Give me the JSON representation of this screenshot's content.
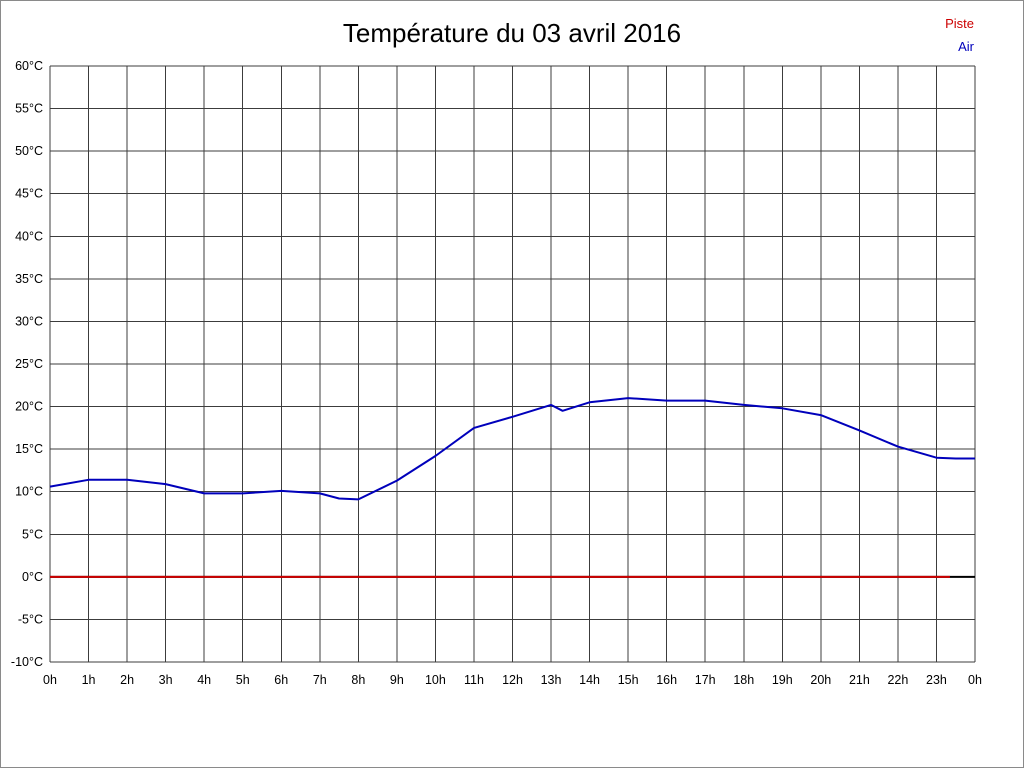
{
  "title": "Température du 03 avril 2016",
  "legend": {
    "piste": "Piste",
    "air": "Air"
  },
  "colors": {
    "piste": "#cc0000",
    "air": "#0000bb",
    "grid": "#3c3c3c",
    "zero_line": "#000000"
  },
  "chart_data": {
    "type": "line",
    "title": "Température du 03 avril 2016",
    "xlabel": "",
    "ylabel": "",
    "xlim": [
      0,
      24
    ],
    "ylim": [
      -10,
      60
    ],
    "y_step": 5,
    "x_step": 1,
    "grid": true,
    "legend_position": "top-right",
    "x_tick_labels": [
      "0h",
      "1h",
      "2h",
      "3h",
      "4h",
      "5h",
      "6h",
      "7h",
      "8h",
      "9h",
      "10h",
      "11h",
      "12h",
      "13h",
      "14h",
      "15h",
      "16h",
      "17h",
      "18h",
      "19h",
      "20h",
      "21h",
      "22h",
      "23h",
      "0h"
    ],
    "y_tick_labels": [
      "60°C",
      "55°C",
      "50°C",
      "45°C",
      "40°C",
      "35°C",
      "30°C",
      "25°C",
      "20°C",
      "15°C",
      "10°C",
      "5°C",
      "0°C",
      "-5°C",
      "-10°C"
    ],
    "series": [
      {
        "name": "Piste",
        "color": "#cc0000",
        "x": [
          0,
          23.35
        ],
        "values": [
          0,
          0
        ]
      },
      {
        "name": "Air",
        "color": "#0000bb",
        "x": [
          0,
          1,
          2,
          3,
          4,
          5,
          6,
          7,
          7.5,
          8,
          9,
          10,
          11,
          12,
          13,
          13.3,
          14,
          15,
          16,
          17,
          18,
          19,
          20,
          21,
          22,
          23,
          23.5,
          24
        ],
        "values": [
          10.6,
          11.4,
          11.4,
          10.9,
          9.8,
          9.8,
          10.1,
          9.8,
          9.2,
          9.1,
          11.3,
          14.2,
          17.5,
          18.8,
          20.2,
          19.5,
          20.5,
          21.0,
          20.7,
          20.7,
          20.2,
          19.8,
          19.0,
          17.2,
          15.3,
          14.0,
          13.9,
          13.9
        ]
      }
    ],
    "zero_line": {
      "value": 0,
      "color": "#000000"
    }
  }
}
